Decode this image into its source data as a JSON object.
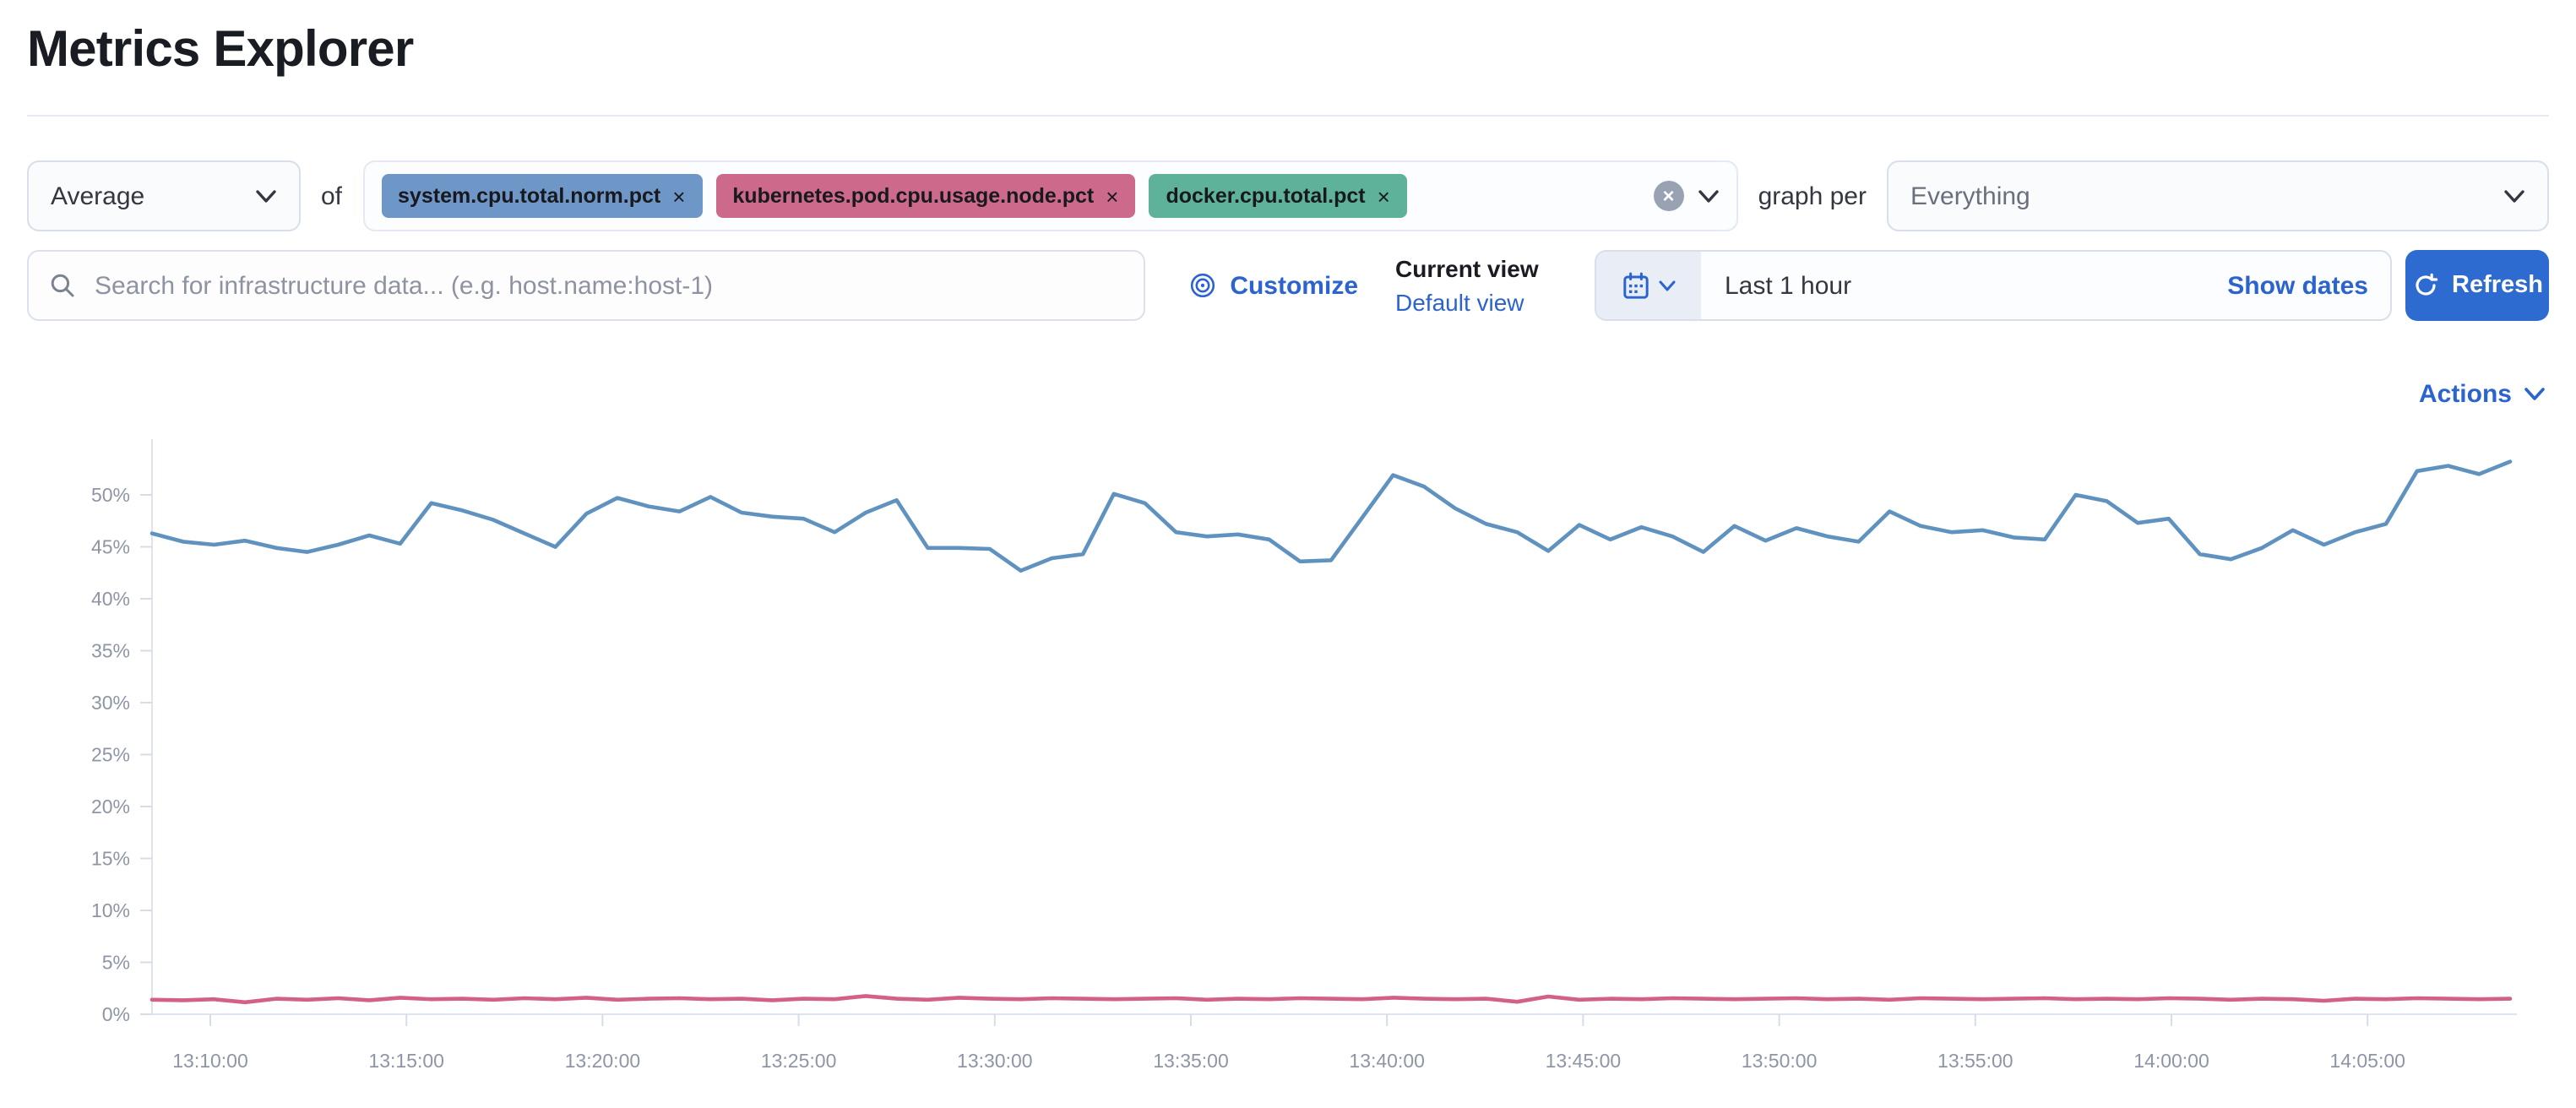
{
  "page": {
    "title": "Metrics Explorer"
  },
  "toolbar": {
    "aggregation": {
      "value": "Average"
    },
    "of_label": "of",
    "metrics": [
      {
        "label": "system.cpu.total.norm.pct",
        "color": "#6E96C6"
      },
      {
        "label": "kubernetes.pod.cpu.usage.node.pct",
        "color": "#CD6A8B"
      },
      {
        "label": "docker.cpu.total.pct",
        "color": "#5EB29A"
      }
    ],
    "graph_per_label": "graph per",
    "group_by": {
      "value": "Everything"
    }
  },
  "search": {
    "placeholder": "Search for infrastructure data... (e.g. host.name:host-1)"
  },
  "view_controls": {
    "customize_label": "Customize",
    "current_view_label": "Current view",
    "default_view_label": "Default view"
  },
  "time_picker": {
    "value": "Last 1 hour",
    "show_dates_label": "Show dates",
    "refresh_label": "Refresh"
  },
  "chart_header": {
    "actions_label": "Actions"
  },
  "icons": {
    "remove_glyph": "×",
    "clear_glyph": "×",
    "names": [
      "magnifier-search",
      "bullseye-customize",
      "calendar",
      "chevron-down",
      "circle-clear",
      "refresh-arrow"
    ]
  },
  "colors": {
    "primary_button": "#2e6bd0",
    "link": "#2b63cf",
    "line_blue": "#6092C0",
    "line_pink": "#D36086",
    "axis_text": "#8e95a4"
  },
  "chart_data": {
    "type": "line",
    "title": "",
    "xlabel": "",
    "ylabel": "",
    "grid": "ticks-only",
    "legend": "none",
    "ylim_pct": [
      0,
      53.5
    ],
    "y_ticks": [
      "0%",
      "5%",
      "10%",
      "15%",
      "20%",
      "25%",
      "30%",
      "35%",
      "40%",
      "45%",
      "50%"
    ],
    "x_ticks": [
      "13:10:00",
      "13:15:00",
      "13:20:00",
      "13:25:00",
      "13:30:00",
      "13:35:00",
      "13:40:00",
      "13:45:00",
      "13:50:00",
      "13:55:00",
      "14:00:00",
      "14:05:00"
    ],
    "x_range": [
      "13:08:30",
      "14:07:45"
    ],
    "sample_interval_seconds": 47,
    "unit": "percent",
    "series": [
      {
        "name": "system.cpu.total.norm.pct",
        "color": "#6092C0",
        "values": [
          46.3,
          45.5,
          45.2,
          45.6,
          44.9,
          44.5,
          45.2,
          46.1,
          45.3,
          49.2,
          48.5,
          47.6,
          46.3,
          45.0,
          48.2,
          49.7,
          48.9,
          48.4,
          49.8,
          48.3,
          47.9,
          47.7,
          46.4,
          48.3,
          49.5,
          44.9,
          44.9,
          44.8,
          42.7,
          43.9,
          44.3,
          50.1,
          49.2,
          46.4,
          46.0,
          46.2,
          45.7,
          43.6,
          43.7,
          47.8,
          51.9,
          50.8,
          48.7,
          47.2,
          46.4,
          44.6,
          47.1,
          45.7,
          46.9,
          46.0,
          44.5,
          47.0,
          45.6,
          46.8,
          46.0,
          45.5,
          48.4,
          47.0,
          46.4,
          46.6,
          45.9,
          45.7,
          50.0,
          49.4,
          47.3,
          47.7,
          44.3,
          43.8,
          44.9,
          46.6,
          45.2,
          46.4,
          47.2,
          52.3,
          52.8,
          52.0,
          53.2
        ]
      },
      {
        "name": "kubernetes.pod.cpu.usage.node.pct",
        "color": "#D36086",
        "values": [
          1.4,
          1.35,
          1.45,
          1.15,
          1.5,
          1.4,
          1.55,
          1.35,
          1.6,
          1.45,
          1.5,
          1.4,
          1.55,
          1.45,
          1.6,
          1.4,
          1.5,
          1.55,
          1.45,
          1.5,
          1.35,
          1.5,
          1.45,
          1.75,
          1.5,
          1.4,
          1.6,
          1.5,
          1.45,
          1.55,
          1.5,
          1.45,
          1.5,
          1.55,
          1.4,
          1.5,
          1.45,
          1.55,
          1.5,
          1.45,
          1.6,
          1.5,
          1.45,
          1.5,
          1.2,
          1.7,
          1.4,
          1.5,
          1.45,
          1.55,
          1.5,
          1.45,
          1.5,
          1.55,
          1.45,
          1.5,
          1.4,
          1.55,
          1.5,
          1.45,
          1.5,
          1.55,
          1.45,
          1.5,
          1.45,
          1.55,
          1.5,
          1.4,
          1.5,
          1.45,
          1.3,
          1.5,
          1.45,
          1.55,
          1.5,
          1.45,
          1.5
        ]
      }
    ]
  }
}
